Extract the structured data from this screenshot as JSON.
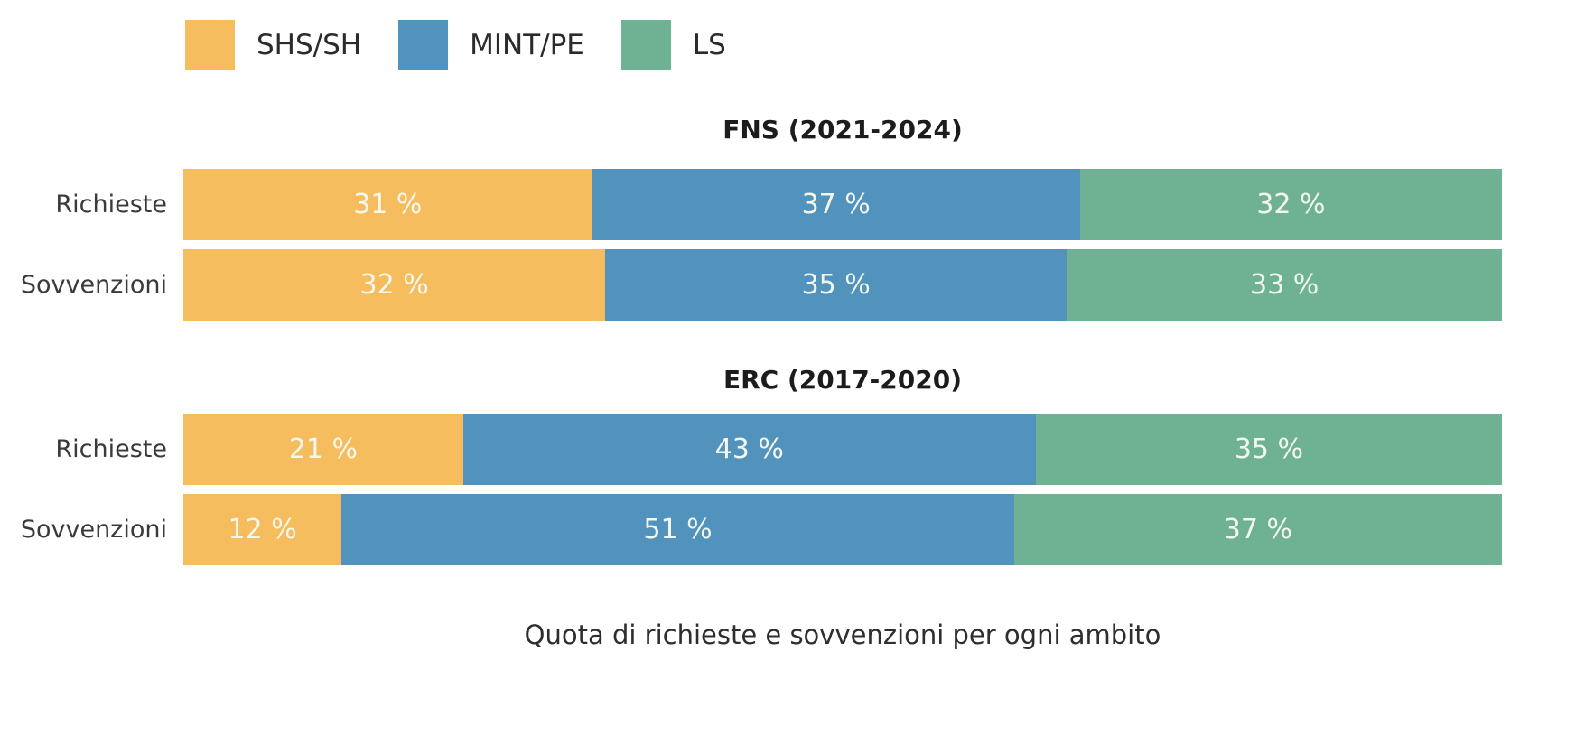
{
  "caption": "Quota di richieste e sovvenzioni per ogni ambito",
  "colors": {
    "shs_sh": "#F6BD5E",
    "mint_pe": "#5193BC",
    "ls": "#6EB193",
    "bar_value_label": "#F3F7EE",
    "row_label_text": "#3A3A3A",
    "title_text": "#1C1C1C",
    "background": "#FFFFFF"
  },
  "legend": [
    {
      "label": "SHS/SH",
      "color": "#F6BD5E"
    },
    {
      "label": "MINT/PE",
      "color": "#5193BC"
    },
    {
      "label": "LS",
      "color": "#6EB193"
    }
  ],
  "chart_data": {
    "type": "bar",
    "orientation": "horizontal",
    "stacked": true,
    "unit": "%",
    "xlim": [
      0,
      100
    ],
    "grid": false,
    "legend_position": "top-left",
    "value_label_format": "{v} %",
    "series_names": [
      "SHS/SH",
      "MINT/PE",
      "LS"
    ],
    "groups": [
      {
        "title": "FNS (2021-2024)",
        "rows": [
          {
            "label": "Richieste",
            "values": [
              31,
              37,
              32
            ]
          },
          {
            "label": "Sovvenzioni",
            "values": [
              32,
              35,
              33
            ]
          }
        ]
      },
      {
        "title": "ERC (2017-2020)",
        "rows": [
          {
            "label": "Richieste",
            "values": [
              21,
              43,
              35
            ]
          },
          {
            "label": "Sovvenzioni",
            "values": [
              12,
              51,
              37
            ]
          }
        ]
      }
    ],
    "caption": "Quota di richieste e sovvenzioni per ogni ambito"
  }
}
